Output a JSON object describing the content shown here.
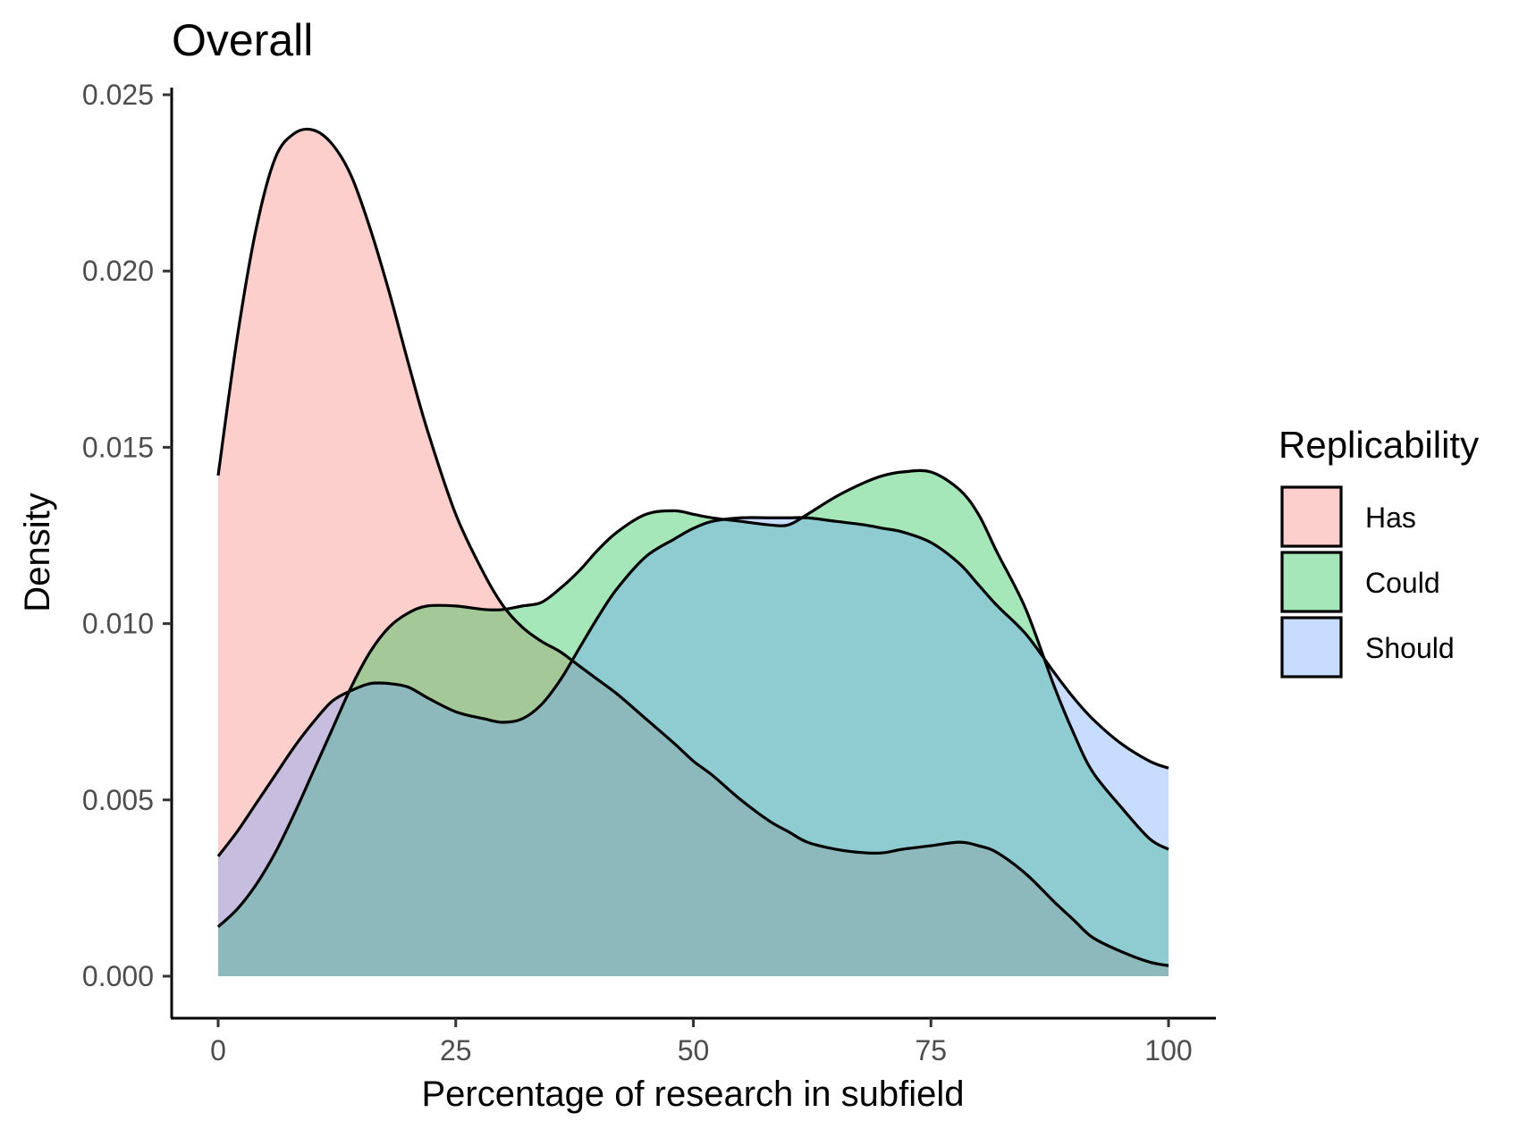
{
  "chart_data": {
    "type": "area",
    "title": "Overall",
    "xlabel": "Percentage of research in subfield",
    "ylabel": "Density",
    "xlim": [
      0,
      100
    ],
    "ylim": [
      0,
      0.025
    ],
    "x_ticks": [
      0,
      25,
      50,
      75,
      100
    ],
    "x_tick_labels": [
      "0",
      "25",
      "50",
      "75",
      "100"
    ],
    "y_ticks": [
      0,
      0.005,
      0.01,
      0.015,
      0.02,
      0.025
    ],
    "y_tick_labels": [
      "0.000",
      "0.005",
      "0.010",
      "0.015",
      "0.020",
      "0.025"
    ],
    "grid": false,
    "legend": {
      "title": "Replicability",
      "position": "right"
    },
    "series": [
      {
        "name": "Has",
        "color": "#F8766D",
        "x": [
          0,
          2,
          4,
          6,
          8,
          10,
          12,
          14,
          16,
          18,
          20,
          22,
          25,
          28,
          30,
          32,
          34,
          36,
          38,
          40,
          42,
          45,
          48,
          50,
          52,
          55,
          58,
          60,
          62,
          65,
          68,
          70,
          72,
          75,
          78,
          80,
          82,
          85,
          88,
          90,
          92,
          95,
          98,
          100
        ],
        "y": [
          0.0142,
          0.0181,
          0.0212,
          0.0232,
          0.0239,
          0.024,
          0.0236,
          0.0227,
          0.0212,
          0.0194,
          0.0174,
          0.0155,
          0.0131,
          0.0114,
          0.0105,
          0.0099,
          0.0095,
          0.0092,
          0.0088,
          0.0084,
          0.008,
          0.0073,
          0.0066,
          0.0061,
          0.0057,
          0.005,
          0.0044,
          0.0041,
          0.0038,
          0.0036,
          0.0035,
          0.0035,
          0.0036,
          0.0037,
          0.0038,
          0.0037,
          0.0035,
          0.0029,
          0.0021,
          0.0016,
          0.0011,
          0.0007,
          0.0004,
          0.0003
        ]
      },
      {
        "name": "Could",
        "color": "#00BA38",
        "x": [
          0,
          2,
          4,
          6,
          8,
          10,
          12,
          14,
          16,
          18,
          20,
          22,
          25,
          28,
          30,
          32,
          34,
          36,
          38,
          40,
          42,
          45,
          48,
          50,
          52,
          55,
          58,
          60,
          62,
          65,
          68,
          70,
          72,
          75,
          78,
          80,
          82,
          85,
          88,
          90,
          92,
          95,
          98,
          100
        ],
        "y": [
          0.0014,
          0.0019,
          0.0026,
          0.0035,
          0.0046,
          0.0058,
          0.007,
          0.0082,
          0.0092,
          0.0099,
          0.0103,
          0.0105,
          0.0105,
          0.0104,
          0.0104,
          0.0105,
          0.0106,
          0.011,
          0.0115,
          0.0121,
          0.0126,
          0.0131,
          0.0132,
          0.0131,
          0.013,
          0.0129,
          0.0128,
          0.0128,
          0.0131,
          0.0136,
          0.014,
          0.0142,
          0.0143,
          0.0143,
          0.0138,
          0.0131,
          0.012,
          0.0104,
          0.0082,
          0.0069,
          0.0058,
          0.0048,
          0.0039,
          0.0036
        ]
      },
      {
        "name": "Should",
        "color": "#619CFF",
        "x": [
          0,
          2,
          4,
          6,
          8,
          10,
          12,
          14,
          16,
          18,
          20,
          22,
          25,
          28,
          30,
          32,
          34,
          36,
          38,
          40,
          42,
          45,
          48,
          50,
          52,
          55,
          58,
          60,
          62,
          65,
          68,
          70,
          72,
          75,
          78,
          80,
          82,
          85,
          88,
          90,
          92,
          95,
          98,
          100
        ],
        "y": [
          0.0034,
          0.0041,
          0.0049,
          0.0057,
          0.0065,
          0.0072,
          0.0078,
          0.0081,
          0.0083,
          0.0083,
          0.0082,
          0.0079,
          0.0075,
          0.0073,
          0.0072,
          0.0073,
          0.0077,
          0.0084,
          0.0093,
          0.0102,
          0.011,
          0.0119,
          0.0124,
          0.0127,
          0.0129,
          0.013,
          0.013,
          0.013,
          0.013,
          0.0129,
          0.0128,
          0.0127,
          0.0126,
          0.0123,
          0.0117,
          0.0111,
          0.0105,
          0.0097,
          0.0086,
          0.0079,
          0.0073,
          0.0066,
          0.0061,
          0.0059
        ]
      }
    ]
  }
}
